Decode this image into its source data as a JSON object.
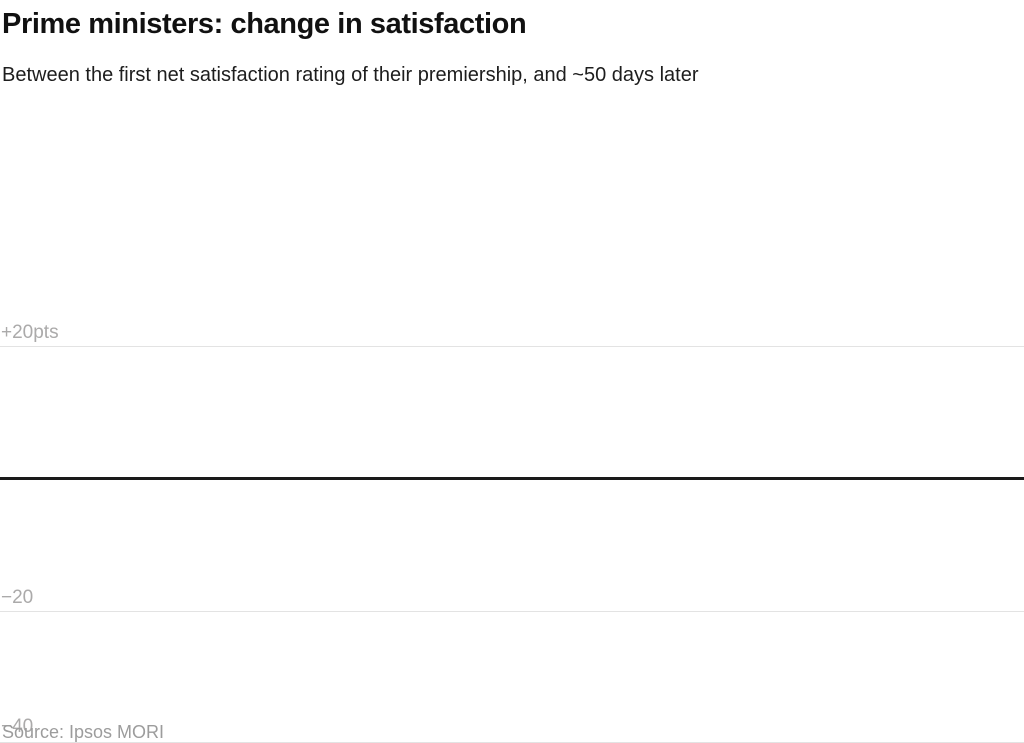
{
  "header": {
    "title": "Prime ministers: change in satisfaction",
    "subtitle": "Between the first net satisfaction rating of their premiership, and ~50 days later"
  },
  "chart": {
    "y_ticks": [
      {
        "label": "+20pts",
        "value": 20
      },
      {
        "label": "−20",
        "value": -20
      },
      {
        "label": "−40",
        "value": -40
      }
    ],
    "zero_baseline_value": 0
  },
  "footer": {
    "source": "Source: Ipsos MORI"
  },
  "colors": {
    "title_text": "#111111",
    "subtitle_text": "#1d1d1d",
    "tick_label_text": "#abaaaa",
    "gridline": "#e3e3e3",
    "zero_line": "#1a1a1a",
    "source_text": "#9c9c9c",
    "background": "#ffffff"
  },
  "chart_data": {
    "type": "bar",
    "title": "Prime ministers: change in satisfaction",
    "subtitle": "Between the first net satisfaction rating of their premiership, and ~50 days later",
    "categories": [],
    "values": [],
    "series": [],
    "note": "plot area is empty — no bars/data points are rendered in the screenshot",
    "xlabel": "",
    "ylabel": "",
    "y_axis": {
      "tick_labels": [
        "+20pts",
        "−20",
        "−40"
      ],
      "tick_values": [
        20,
        -20,
        -40
      ],
      "zero_baseline": true,
      "unit": "pts",
      "ylim": [
        -56,
        27
      ]
    },
    "grid": "horizontal",
    "legend_position": "none",
    "source": "Source: Ipsos MORI"
  }
}
